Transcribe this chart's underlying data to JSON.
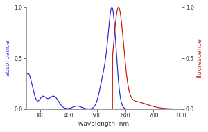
{
  "xlim": [
    250,
    800
  ],
  "ylim": [
    0,
    1.0
  ],
  "xlabel": "wavelength, nm",
  "ylabel_left": "absorbance",
  "ylabel_right": "fluorescence",
  "xticks": [
    300,
    400,
    500,
    600,
    700,
    800
  ],
  "yticks": [
    0,
    0.5,
    1.0
  ],
  "blue_color": "#2222dd",
  "red_color": "#cc1111",
  "background_color": "#ffffff",
  "ylabel_left_color": "#4444ff",
  "ylabel_right_color": "#cc3333",
  "figsize": [
    3.0,
    1.91
  ],
  "dpi": 100
}
